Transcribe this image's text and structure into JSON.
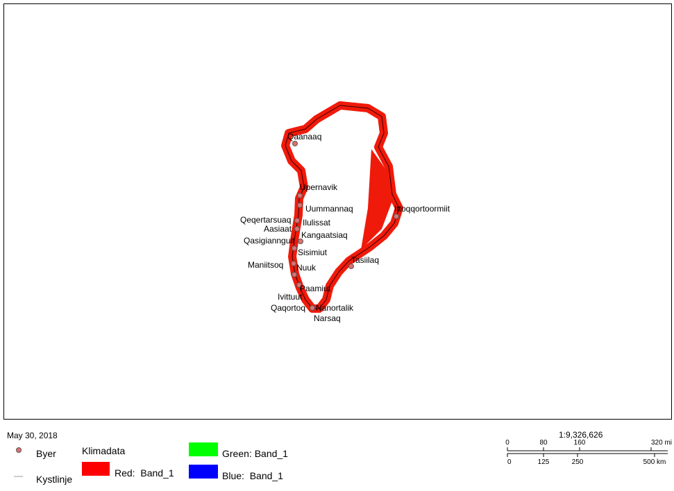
{
  "date": "May 30, 2018",
  "cities": [
    "Qaanaaq",
    "Upernavik",
    "Uummannaq",
    "Qeqertarsuaq",
    "Ilulissat",
    "Aasiaat",
    "Kangaatsiaq",
    "Qasigiannguit",
    "Sisimiut",
    "Maniitsoq",
    "Nuuk",
    "Paamiut",
    "Ivittuut",
    "Qaqortoq",
    "Nanortalik",
    "Narsaq",
    "Ittoqqortoormiit",
    "Tasiilaq"
  ],
  "legend": {
    "cities": "Byer",
    "coastline": "Kystlinje",
    "raster_title": "Klimadata",
    "red": "Red:  Band_1",
    "green": "Green: Band_1",
    "blue": "Blue:  Band_1"
  },
  "scale": {
    "ratio": "1:9,326,626",
    "miles": [
      "0",
      "80",
      "160",
      "320 mi"
    ],
    "km": [
      "0",
      "125",
      "250",
      "500 km"
    ]
  }
}
